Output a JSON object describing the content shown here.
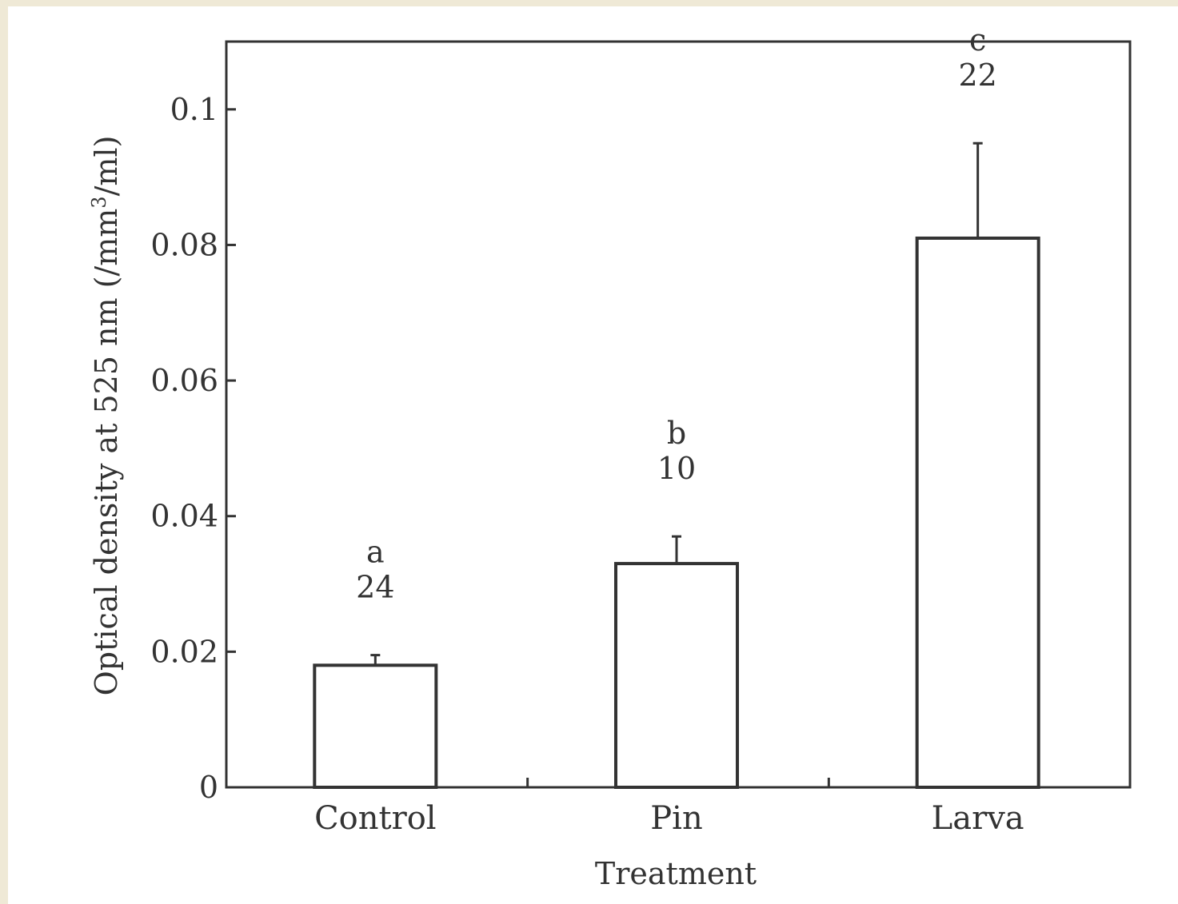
{
  "chart_data": {
    "type": "bar",
    "categories": [
      "Control",
      "Pin",
      "Larva"
    ],
    "values": [
      0.018,
      0.033,
      0.081
    ],
    "error_upper": [
      0.0195,
      0.037,
      0.095
    ],
    "group_letters": [
      "a",
      "b",
      "c"
    ],
    "sample_sizes": [
      "24",
      "10",
      "22"
    ],
    "xlabel": "Treatment",
    "ylabel_main": "Optical density at 525 nm (/mm",
    "ylabel_sup": "3",
    "ylabel_end": "/ml)",
    "ylim": [
      0,
      0.11
    ],
    "yticks": [
      0,
      0.02,
      0.04,
      0.06,
      0.08,
      0.1
    ],
    "ytick_labels": [
      "0",
      "0.02",
      "0.04",
      "0.06",
      "0.08",
      "0.1"
    ],
    "bar_fill": "#ffffff",
    "line_color": "#333333",
    "grid": false
  }
}
